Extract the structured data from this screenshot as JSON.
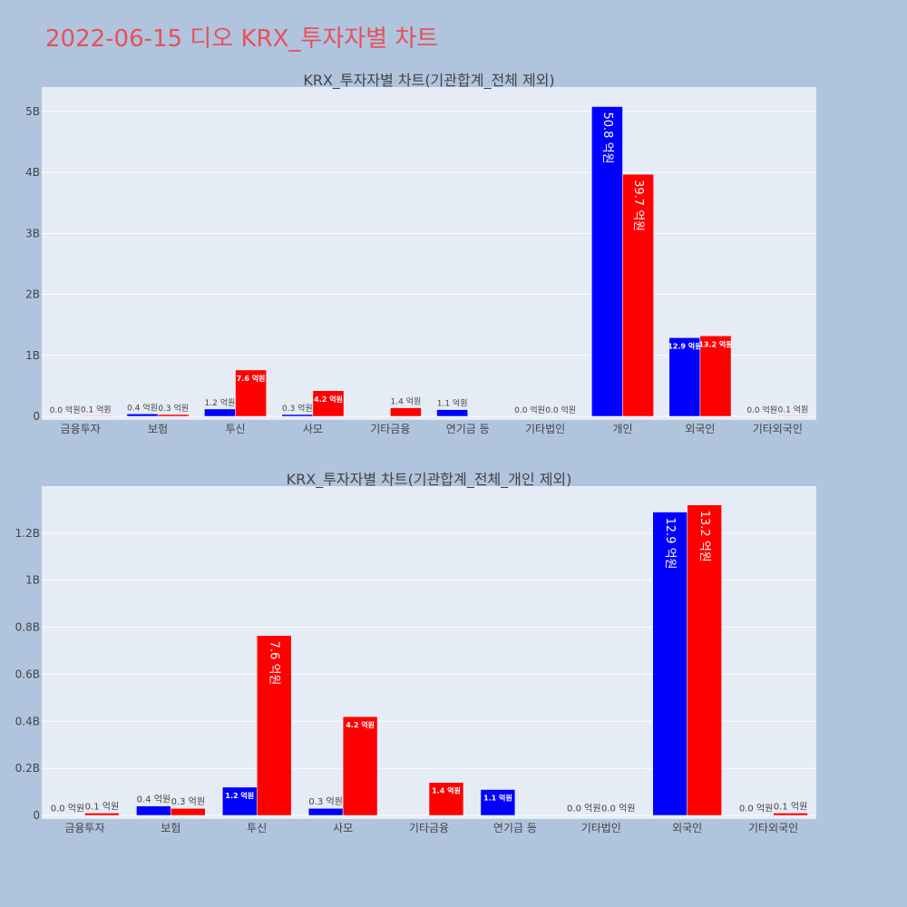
{
  "page_title": "2022-06-15 디오 KRX_투자자별 차트",
  "colors": {
    "buy": "#0000ff",
    "sell": "#ff0000",
    "plot_bg": "#e5ecf6",
    "page_bg": "#b0c4de"
  },
  "chart_data": [
    {
      "type": "bar",
      "title": "KRX_투자자별 차트(기관합계_전체 제외)",
      "categories": [
        "금융투자",
        "보험",
        "투신",
        "사모",
        "기타금융",
        "연기금 등",
        "기타법인",
        "개인",
        "외국인",
        "기타외국인"
      ],
      "series": [
        {
          "color": "#0000ff",
          "values": [
            0.002,
            0.04,
            0.12,
            0.03,
            0,
            0.11,
            0.002,
            5.08,
            1.29,
            0.002
          ],
          "labels": [
            "0.0 억원",
            "0.4 억원",
            "1.2 억원",
            "0.3 억원",
            "",
            "1.1 억원",
            "0.0 억원",
            "50.8 억원",
            "12.9 억원",
            "0.0 억원"
          ]
        },
        {
          "color": "#ff0000",
          "values": [
            0.01,
            0.03,
            0.76,
            0.42,
            0.14,
            0,
            0.002,
            3.97,
            1.32,
            0.01
          ],
          "labels": [
            "0.1 억원",
            "0.3 억원",
            "7.6 억원",
            "4.2 억원",
            "1.4 억원",
            "",
            "0.0 억원",
            "39.7 억원",
            "13.2 억원",
            "0.1 억원"
          ]
        }
      ],
      "ylim": [
        0,
        5.4
      ],
      "yticks": [
        0,
        1,
        2,
        3,
        4,
        5
      ],
      "ytick_labels": [
        "0",
        "1B",
        "2B",
        "3B",
        "4B",
        "5B"
      ],
      "grid": true,
      "legend": "none"
    },
    {
      "type": "bar",
      "title": "KRX_투자자별 차트(기관합계_전체_개인 제외)",
      "categories": [
        "금융투자",
        "보험",
        "투신",
        "사모",
        "기타금융",
        "연기금 등",
        "기타법인",
        "외국인",
        "기타외국인"
      ],
      "series": [
        {
          "color": "#0000ff",
          "values": [
            0.002,
            0.04,
            0.12,
            0.03,
            0,
            0.11,
            0.002,
            1.29,
            0.002
          ],
          "labels": [
            "0.0 억원",
            "0.4 억원",
            "1.2 억원",
            "0.3 억원",
            "",
            "1.1 억원",
            "0.0 억원",
            "12.9 억원",
            "0.0 억원"
          ]
        },
        {
          "color": "#ff0000",
          "values": [
            0.01,
            0.03,
            0.765,
            0.42,
            0.14,
            0,
            0.002,
            1.32,
            0.01
          ],
          "labels": [
            "0.1 억원",
            "0.3 억원",
            "7.6 억원",
            "4.2 억원",
            "1.4 억원",
            "",
            "0.0 억원",
            "13.2 억원",
            "0.1 억원"
          ]
        }
      ],
      "ylim": [
        0,
        1.4
      ],
      "yticks": [
        0,
        0.2,
        0.4,
        0.6,
        0.8,
        1.0,
        1.2
      ],
      "ytick_labels": [
        "0",
        "0.2B",
        "0.4B",
        "0.6B",
        "0.8B",
        "1B",
        "1.2B"
      ],
      "grid": true,
      "legend": "none"
    }
  ]
}
